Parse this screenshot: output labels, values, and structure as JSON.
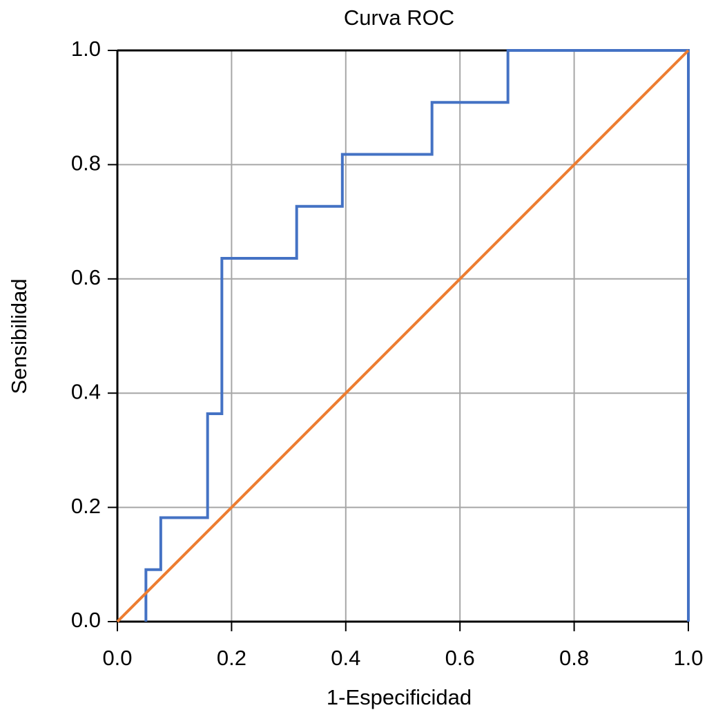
{
  "chart_data": {
    "type": "line",
    "title": "Curva ROC",
    "x_label": "1-Especificidad",
    "y_label": "Sensibilidad",
    "series": [
      {
        "color": "#4472c4",
        "x": [
          0.05,
          0.05,
          0.076,
          0.076,
          0.158,
          0.158,
          0.183,
          0.183,
          0.314,
          0.314,
          0.394,
          0.394,
          0.551,
          0.551,
          0.684,
          0.684,
          1,
          1
        ],
        "values": [
          0,
          0.091,
          0.091,
          0.182,
          0.182,
          0.364,
          0.364,
          0.636,
          0.636,
          0.727,
          0.727,
          0.818,
          0.818,
          0.909,
          0.909,
          1,
          1,
          0
        ]
      },
      {
        "color": "#ed7d31",
        "x": [
          0,
          1
        ],
        "values": [
          0,
          1
        ]
      }
    ],
    "xlim": [
      0,
      1
    ],
    "ylim": [
      0,
      1
    ],
    "xticks": [
      {
        "value": 0,
        "label": "0.0"
      },
      0.2,
      0.4,
      0.6,
      0.8,
      {
        "value": 1,
        "label": "1.0"
      }
    ],
    "yticks": [
      {
        "value": 0,
        "label": "0.0"
      },
      0.2,
      0.4,
      0.6,
      0.8,
      {
        "value": 1,
        "label": "1.0"
      }
    ],
    "grid": true
  }
}
